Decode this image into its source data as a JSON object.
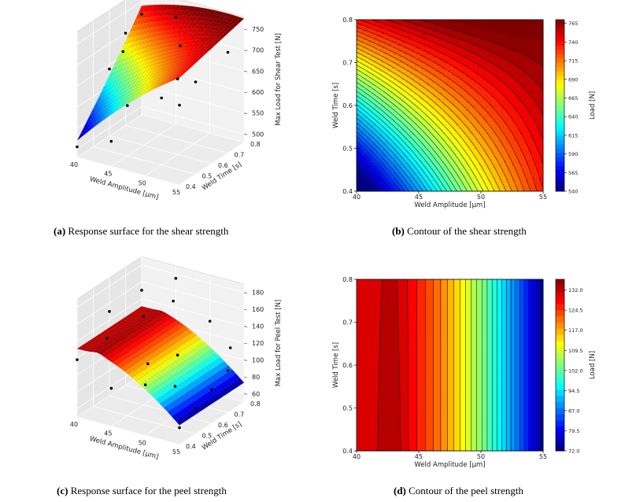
{
  "captions": {
    "a": {
      "label": "(a)",
      "text": "Response surface for the shear strength"
    },
    "b": {
      "label": "(b)",
      "text": "Contour of the shear strength"
    },
    "c": {
      "label": "(c)",
      "text": "Response surface for the peel strength"
    },
    "d": {
      "label": "(d)",
      "text": "Contour of the peel strength"
    }
  },
  "chart_data": [
    {
      "id": "a",
      "type": "surface3d",
      "xlabel": "Weld Amplitude [μm]",
      "ylabel": "Weld Time [s]",
      "zlabel": "Max Load for Shear Test [N]",
      "xticks": [
        "40",
        "45",
        "50",
        "55"
      ],
      "yticks": [
        "0.4",
        "0.5",
        "0.6",
        "0.7",
        "0.8"
      ],
      "zticks": [
        "500",
        "550",
        "600",
        "650",
        "700",
        "750"
      ],
      "xlim": [
        40,
        55
      ],
      "ylim": [
        0.4,
        0.8
      ],
      "zlim": [
        480,
        780
      ],
      "colormap": "jet",
      "surface_range": [
        520,
        770
      ],
      "points": [
        [
          40,
          0.4,
          505
        ],
        [
          40,
          0.6,
          640
        ],
        [
          40,
          0.7,
          700
        ],
        [
          40,
          0.8,
          720
        ],
        [
          45,
          0.4,
          540
        ],
        [
          45,
          0.5,
          600
        ],
        [
          45,
          0.8,
          735
        ],
        [
          50,
          0.5,
          640
        ],
        [
          50,
          0.6,
          660
        ],
        [
          55,
          0.4,
          670
        ],
        [
          55,
          0.7,
          720
        ],
        [
          55,
          0.5,
          700
        ],
        [
          42,
          0.6,
          690
        ],
        [
          48,
          0.7,
          705
        ]
      ]
    },
    {
      "id": "b",
      "type": "contour",
      "xlabel": "Weld Amplitude [μm]",
      "ylabel": "Weld Time [s]",
      "cbar_label": "Load [N]",
      "xticks": [
        "40",
        "45",
        "50",
        "55"
      ],
      "yticks": [
        "0.4",
        "0.5",
        "0.6",
        "0.7",
        "0.8"
      ],
      "xlim": [
        40,
        55
      ],
      "ylim": [
        0.4,
        0.8
      ],
      "colormap": "jet",
      "levels_range": [
        540,
        770
      ],
      "cbar_ticks": [
        "540",
        "565",
        "590",
        "615",
        "640",
        "665",
        "690",
        "715",
        "740",
        "765"
      ]
    },
    {
      "id": "c",
      "type": "surface3d",
      "xlabel": "Weld Amplitude [μm]",
      "ylabel": "Weld Time [s]",
      "zlabel": "Max Load for Peel Test [N]",
      "xticks": [
        "40",
        "45",
        "50",
        "55"
      ],
      "yticks": [
        "0.4",
        "0.5",
        "0.6",
        "0.7",
        "0.8"
      ],
      "zticks": [
        "60",
        "80",
        "100",
        "120",
        "140",
        "160",
        "180"
      ],
      "xlim": [
        40,
        55
      ],
      "ylim": [
        0.4,
        0.8
      ],
      "zlim": [
        50,
        190
      ],
      "colormap": "jet",
      "surface_range": [
        72,
        135
      ],
      "points": [
        [
          40,
          0.4,
          118
        ],
        [
          40,
          0.6,
          150
        ],
        [
          40,
          0.8,
          150
        ],
        [
          42,
          0.5,
          135
        ],
        [
          45,
          0.4,
          95
        ],
        [
          45,
          0.6,
          155
        ],
        [
          45,
          0.8,
          175
        ],
        [
          47,
          0.7,
          165
        ],
        [
          50,
          0.4,
          110
        ],
        [
          50,
          0.6,
          120
        ],
        [
          50,
          0.8,
          135
        ],
        [
          52,
          0.5,
          100
        ],
        [
          55,
          0.4,
          70
        ],
        [
          55,
          0.5,
          80
        ],
        [
          55,
          0.6,
          90
        ],
        [
          55,
          0.7,
          100
        ],
        [
          53,
          0.8,
          110
        ],
        [
          48,
          0.5,
          118
        ]
      ]
    },
    {
      "id": "d",
      "type": "contour",
      "xlabel": "Weld Amplitude [μm]",
      "ylabel": "Weld Time [s]",
      "cbar_label": "Load [N]",
      "xticks": [
        "40",
        "45",
        "50",
        "55"
      ],
      "yticks": [
        "0.4",
        "0.5",
        "0.6",
        "0.7",
        "0.8"
      ],
      "xlim": [
        40,
        55
      ],
      "ylim": [
        0.4,
        0.8
      ],
      "colormap": "jet",
      "levels_range": [
        72,
        136
      ],
      "cbar_ticks": [
        "72.0",
        "79.5",
        "87.0",
        "94.5",
        "102.0",
        "109.5",
        "117.0",
        "124.5",
        "132.0"
      ]
    }
  ]
}
